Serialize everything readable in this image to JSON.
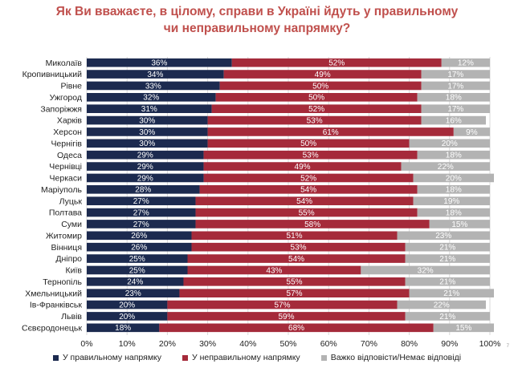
{
  "title_line1": "Як Ви вважаєте, в цілому, справи в Україні йдуть у правильному",
  "title_line2": "чи неправильному напрямку?",
  "page_number": "7",
  "colors": {
    "right": "#1c2a4f",
    "wrong": "#a52a3a",
    "hard": "#b3b3b3",
    "title": "#c0504d"
  },
  "chart_data": {
    "type": "bar",
    "orientation": "horizontal",
    "stacked": true,
    "title": "Як Ви вважаєте, в цілому, справи в Україні йдуть у правильному чи неправильному напрямку?",
    "categories": [
      "Миколаїв",
      "Кропивницький",
      "Рівне",
      "Ужгород",
      "Запоріжжя",
      "Харків",
      "Херсон",
      "Чернігів",
      "Одеса",
      "Чернівці",
      "Черкаси",
      "Маріуполь",
      "Луцьк",
      "Полтава",
      "Суми",
      "Житомир",
      "Вінниця",
      "Дніпро",
      "Київ",
      "Тернопіль",
      "Хмельницький",
      "Ів-Франківськ",
      "Львів",
      "Сєвєродонецьк"
    ],
    "series": [
      {
        "name": "У правильному напрямку",
        "values": [
          36,
          34,
          33,
          32,
          31,
          30,
          30,
          30,
          29,
          29,
          29,
          28,
          27,
          27,
          27,
          26,
          26,
          25,
          25,
          24,
          23,
          20,
          20,
          18
        ]
      },
      {
        "name": "У неправильному напрямку",
        "values": [
          52,
          49,
          50,
          50,
          52,
          53,
          61,
          50,
          53,
          49,
          52,
          54,
          54,
          55,
          58,
          51,
          53,
          54,
          43,
          55,
          57,
          57,
          59,
          68
        ]
      },
      {
        "name": "Важко відповісти/Немає відповіді",
        "values": [
          12,
          17,
          17,
          18,
          17,
          16,
          9,
          20,
          18,
          22,
          20,
          18,
          19,
          18,
          15,
          23,
          21,
          21,
          32,
          21,
          21,
          22,
          21,
          15
        ]
      }
    ],
    "xlim": [
      0,
      100
    ],
    "xticks": [
      "0%",
      "10%",
      "20%",
      "30%",
      "40%",
      "50%",
      "60%",
      "70%",
      "80%",
      "90%",
      "100%"
    ],
    "value_suffix": "%",
    "grid": true,
    "legend_position": "bottom"
  }
}
